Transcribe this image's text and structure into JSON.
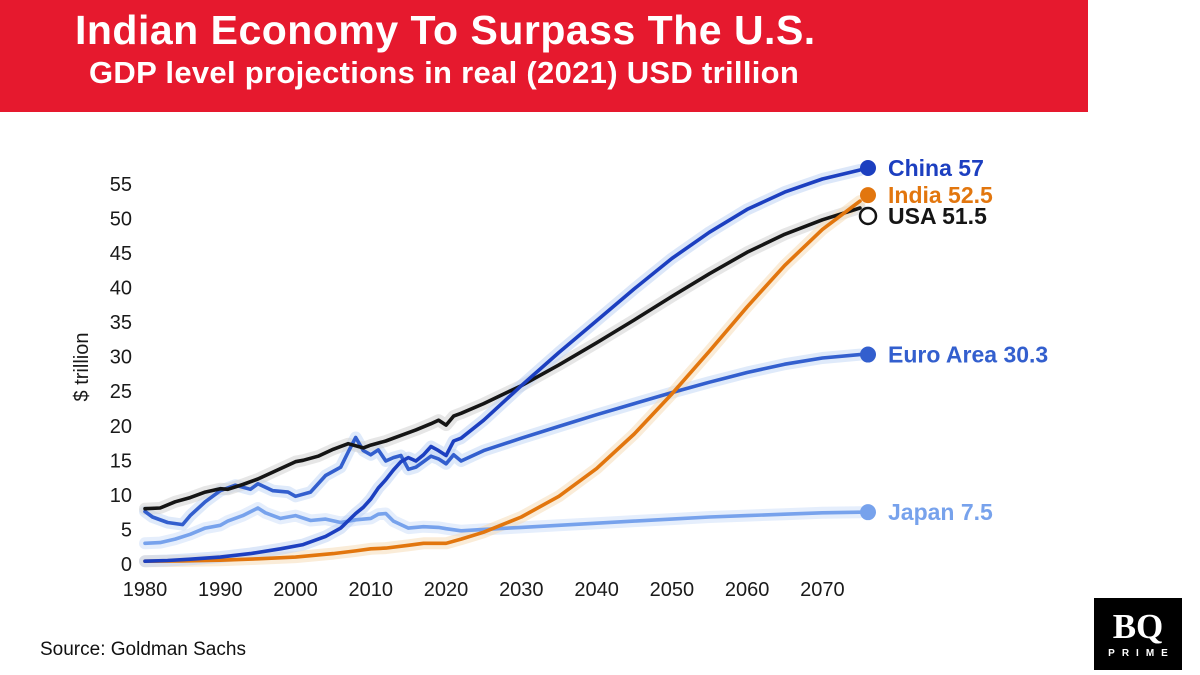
{
  "header": {
    "title": "Indian Economy To Surpass The U.S.",
    "subtitle": "GDP level projections in real (2021) USD trillion",
    "banner_color": "#e6192e"
  },
  "chart_data": {
    "type": "line",
    "title": "Indian Economy To Surpass The U.S.",
    "subtitle": "GDP level projections in real (2021) USD trillion",
    "xlabel": "",
    "ylabel": "$ trillion",
    "x_range": [
      1980,
      2075
    ],
    "y_range": [
      0,
      57
    ],
    "x_ticks": [
      1980,
      1990,
      2000,
      2010,
      2020,
      2030,
      2040,
      2050,
      2060,
      2070
    ],
    "y_ticks": [
      0,
      5,
      10,
      15,
      20,
      25,
      30,
      35,
      40,
      45,
      50,
      55
    ],
    "grid": false,
    "legend_position": "right-end-labels",
    "series": [
      {
        "id": "china",
        "name": "China",
        "end_label": "China 57",
        "end_value": 57,
        "end_dy": -2,
        "color": "#1c3fc0",
        "halo": "#bfd3f4",
        "points": [
          [
            1980,
            0.4
          ],
          [
            1983,
            0.5
          ],
          [
            1986,
            0.7
          ],
          [
            1990,
            1.0
          ],
          [
            1994,
            1.5
          ],
          [
            1998,
            2.2
          ],
          [
            2001,
            2.8
          ],
          [
            2004,
            4.0
          ],
          [
            2006,
            5.2
          ],
          [
            2008,
            7.3
          ],
          [
            2009,
            8.2
          ],
          [
            2010,
            9.4
          ],
          [
            2011,
            11.0
          ],
          [
            2012,
            12.2
          ],
          [
            2013,
            13.6
          ],
          [
            2014,
            14.8
          ],
          [
            2015,
            15.4
          ],
          [
            2016,
            14.9
          ],
          [
            2017,
            15.8
          ],
          [
            2018,
            17.0
          ],
          [
            2019,
            16.4
          ],
          [
            2020,
            15.7
          ],
          [
            2021,
            17.8
          ],
          [
            2022,
            18.2
          ],
          [
            2025,
            20.8
          ],
          [
            2030,
            25.8
          ],
          [
            2035,
            30.6
          ],
          [
            2040,
            35.2
          ],
          [
            2045,
            39.8
          ],
          [
            2050,
            44.2
          ],
          [
            2055,
            48.0
          ],
          [
            2060,
            51.3
          ],
          [
            2065,
            53.8
          ],
          [
            2070,
            55.7
          ],
          [
            2075,
            57.0
          ]
        ]
      },
      {
        "id": "india",
        "name": "India",
        "end_label": "India 52.5",
        "end_value": 52.5,
        "end_dy": -6,
        "color": "#e2760e",
        "halo": "#f6ddb8",
        "points": [
          [
            1980,
            0.4
          ],
          [
            1985,
            0.45
          ],
          [
            1990,
            0.55
          ],
          [
            1995,
            0.75
          ],
          [
            2000,
            1.0
          ],
          [
            2005,
            1.5
          ],
          [
            2008,
            1.9
          ],
          [
            2010,
            2.2
          ],
          [
            2012,
            2.3
          ],
          [
            2015,
            2.7
          ],
          [
            2017,
            3.0
          ],
          [
            2020,
            3.0
          ],
          [
            2022,
            3.6
          ],
          [
            2025,
            4.6
          ],
          [
            2030,
            6.8
          ],
          [
            2035,
            9.8
          ],
          [
            2040,
            13.8
          ],
          [
            2045,
            18.8
          ],
          [
            2050,
            24.6
          ],
          [
            2055,
            30.8
          ],
          [
            2060,
            37.2
          ],
          [
            2065,
            43.2
          ],
          [
            2070,
            48.4
          ],
          [
            2075,
            52.5
          ]
        ]
      },
      {
        "id": "usa",
        "name": "USA",
        "end_label": "USA 51.5",
        "end_value": 51.5,
        "end_dy": 8,
        "color": "#151515",
        "halo": "#d2d2d2",
        "marker_fill": "#ffffff",
        "marker_stroke": "#151515",
        "label_color": "#151515",
        "points": [
          [
            1980,
            8.0
          ],
          [
            1982,
            8.1
          ],
          [
            1984,
            9.0
          ],
          [
            1986,
            9.6
          ],
          [
            1988,
            10.4
          ],
          [
            1990,
            10.9
          ],
          [
            1991,
            10.8
          ],
          [
            1993,
            11.5
          ],
          [
            1995,
            12.3
          ],
          [
            1997,
            13.3
          ],
          [
            2000,
            14.8
          ],
          [
            2001,
            15.0
          ],
          [
            2003,
            15.6
          ],
          [
            2005,
            16.6
          ],
          [
            2007,
            17.4
          ],
          [
            2009,
            16.8
          ],
          [
            2010,
            17.2
          ],
          [
            2012,
            17.8
          ],
          [
            2014,
            18.6
          ],
          [
            2016,
            19.4
          ],
          [
            2018,
            20.3
          ],
          [
            2019,
            20.8
          ],
          [
            2020,
            20.1
          ],
          [
            2021,
            21.4
          ],
          [
            2022,
            21.8
          ],
          [
            2025,
            23.2
          ],
          [
            2030,
            25.8
          ],
          [
            2035,
            28.8
          ],
          [
            2040,
            32.0
          ],
          [
            2045,
            35.3
          ],
          [
            2050,
            38.7
          ],
          [
            2055,
            42.0
          ],
          [
            2060,
            45.1
          ],
          [
            2065,
            47.7
          ],
          [
            2070,
            49.8
          ],
          [
            2075,
            51.5
          ]
        ]
      },
      {
        "id": "euro-area",
        "name": "Euro Area",
        "end_label": "Euro Area 30.3",
        "end_value": 30.3,
        "end_dy": 0,
        "color": "#335fce",
        "halo": "#c5d8f6",
        "points": [
          [
            1980,
            7.6
          ],
          [
            1981,
            6.8
          ],
          [
            1983,
            6.0
          ],
          [
            1985,
            5.7
          ],
          [
            1986,
            7.0
          ],
          [
            1988,
            9.0
          ],
          [
            1990,
            10.6
          ],
          [
            1992,
            11.4
          ],
          [
            1994,
            10.8
          ],
          [
            1995,
            11.6
          ],
          [
            1997,
            10.6
          ],
          [
            1999,
            10.4
          ],
          [
            2000,
            9.8
          ],
          [
            2002,
            10.4
          ],
          [
            2004,
            12.8
          ],
          [
            2006,
            14.0
          ],
          [
            2007,
            16.2
          ],
          [
            2008,
            18.3
          ],
          [
            2009,
            16.4
          ],
          [
            2010,
            15.8
          ],
          [
            2011,
            16.5
          ],
          [
            2012,
            14.9
          ],
          [
            2013,
            15.4
          ],
          [
            2014,
            15.7
          ],
          [
            2015,
            13.7
          ],
          [
            2016,
            14.0
          ],
          [
            2017,
            14.8
          ],
          [
            2018,
            15.6
          ],
          [
            2019,
            15.2
          ],
          [
            2020,
            14.5
          ],
          [
            2021,
            15.8
          ],
          [
            2022,
            14.9
          ],
          [
            2025,
            16.4
          ],
          [
            2030,
            18.2
          ],
          [
            2035,
            19.9
          ],
          [
            2040,
            21.6
          ],
          [
            2045,
            23.2
          ],
          [
            2050,
            24.8
          ],
          [
            2055,
            26.3
          ],
          [
            2060,
            27.7
          ],
          [
            2065,
            28.9
          ],
          [
            2070,
            29.8
          ],
          [
            2075,
            30.3
          ]
        ]
      },
      {
        "id": "japan",
        "name": "Japan",
        "end_label": "Japan 7.5",
        "end_value": 7.5,
        "end_dy": 0,
        "color": "#77a2ec",
        "halo": "#cfe0f9",
        "points": [
          [
            1980,
            3.0
          ],
          [
            1982,
            3.1
          ],
          [
            1984,
            3.6
          ],
          [
            1986,
            4.3
          ],
          [
            1988,
            5.2
          ],
          [
            1990,
            5.6
          ],
          [
            1991,
            6.2
          ],
          [
            1993,
            7.0
          ],
          [
            1995,
            8.1
          ],
          [
            1996,
            7.4
          ],
          [
            1998,
            6.6
          ],
          [
            2000,
            7.0
          ],
          [
            2002,
            6.3
          ],
          [
            2004,
            6.5
          ],
          [
            2006,
            6.0
          ],
          [
            2008,
            6.4
          ],
          [
            2010,
            6.6
          ],
          [
            2011,
            7.2
          ],
          [
            2012,
            7.3
          ],
          [
            2013,
            6.2
          ],
          [
            2015,
            5.2
          ],
          [
            2017,
            5.4
          ],
          [
            2019,
            5.3
          ],
          [
            2020,
            5.1
          ],
          [
            2022,
            4.8
          ],
          [
            2025,
            5.0
          ],
          [
            2030,
            5.3
          ],
          [
            2035,
            5.6
          ],
          [
            2040,
            5.9
          ],
          [
            2045,
            6.2
          ],
          [
            2050,
            6.5
          ],
          [
            2055,
            6.8
          ],
          [
            2060,
            7.0
          ],
          [
            2065,
            7.2
          ],
          [
            2070,
            7.4
          ],
          [
            2075,
            7.5
          ]
        ]
      }
    ]
  },
  "footer": {
    "source": "Source: Goldman Sachs",
    "logo_top": "BQ",
    "logo_bottom": "PRIME"
  }
}
